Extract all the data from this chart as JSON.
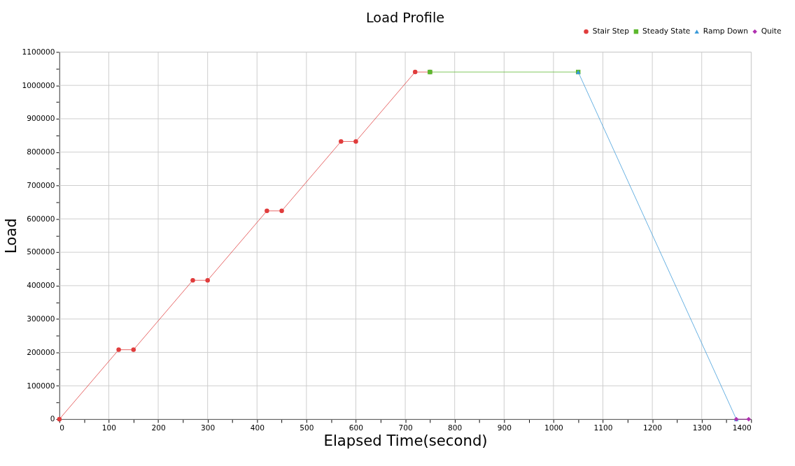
{
  "chart_data": {
    "type": "line",
    "title": "Load Profile",
    "xlabel": "Elapsed Time(second)",
    "ylabel": "Load",
    "series": [
      {
        "name": "Stair Step",
        "color": "#e03c3c",
        "marker": "circle",
        "x": [
          0,
          120,
          150,
          270,
          300,
          420,
          450,
          570,
          600,
          720,
          750
        ],
        "values": [
          0,
          208000,
          208000,
          416000,
          416000,
          624000,
          624000,
          832000,
          832000,
          1040000,
          1040000
        ]
      },
      {
        "name": "Steady State",
        "color": "#5cb82e",
        "marker": "square",
        "x": [
          750,
          1050
        ],
        "values": [
          1040000,
          1040000
        ]
      },
      {
        "name": "Ramp Down",
        "color": "#3a9ad9",
        "marker": "triangle",
        "x": [
          1050,
          1370
        ],
        "values": [
          1040000,
          0
        ]
      },
      {
        "name": "Quite",
        "color": "#b030b0",
        "marker": "diamond",
        "x": [
          1370,
          1395
        ],
        "values": [
          0,
          0
        ]
      }
    ],
    "xlim": [
      0,
      1400
    ],
    "xticks": [
      0,
      {
        "value": 50,
        "label": null
      },
      100,
      {
        "value": 150,
        "label": null
      },
      200,
      {
        "value": 250,
        "label": null
      },
      300,
      {
        "value": 350,
        "label": null
      },
      400,
      {
        "value": 450,
        "label": null
      },
      500,
      {
        "value": 550,
        "label": null
      },
      600,
      {
        "value": 650,
        "label": null
      },
      700,
      {
        "value": 750,
        "label": null
      },
      800,
      {
        "value": 850,
        "label": null
      },
      900,
      {
        "value": 950,
        "label": null
      },
      1000,
      {
        "value": 1050,
        "label": null
      },
      1100,
      {
        "value": 1150,
        "label": null
      },
      1200,
      {
        "value": 1250,
        "label": null
      },
      1300,
      {
        "value": 1350,
        "label": null
      },
      1400
    ],
    "ylim": [
      0,
      1100000
    ],
    "yticks": [
      0,
      {
        "value": 50000,
        "label": null
      },
      100000,
      {
        "value": 150000,
        "label": null
      },
      200000,
      {
        "value": 250000,
        "label": null
      },
      300000,
      {
        "value": 350000,
        "label": null
      },
      400000,
      {
        "value": 450000,
        "label": null
      },
      500000,
      {
        "value": 550000,
        "label": null
      },
      600000,
      {
        "value": 650000,
        "label": null
      },
      700000,
      {
        "value": 750000,
        "label": null
      },
      800000,
      {
        "value": 850000,
        "label": null
      },
      900000,
      {
        "value": 950000,
        "label": null
      },
      1000000,
      {
        "value": 1050000,
        "label": null
      },
      1100000
    ],
    "grid": true,
    "legend": "top right",
    "line_style": "solid"
  }
}
